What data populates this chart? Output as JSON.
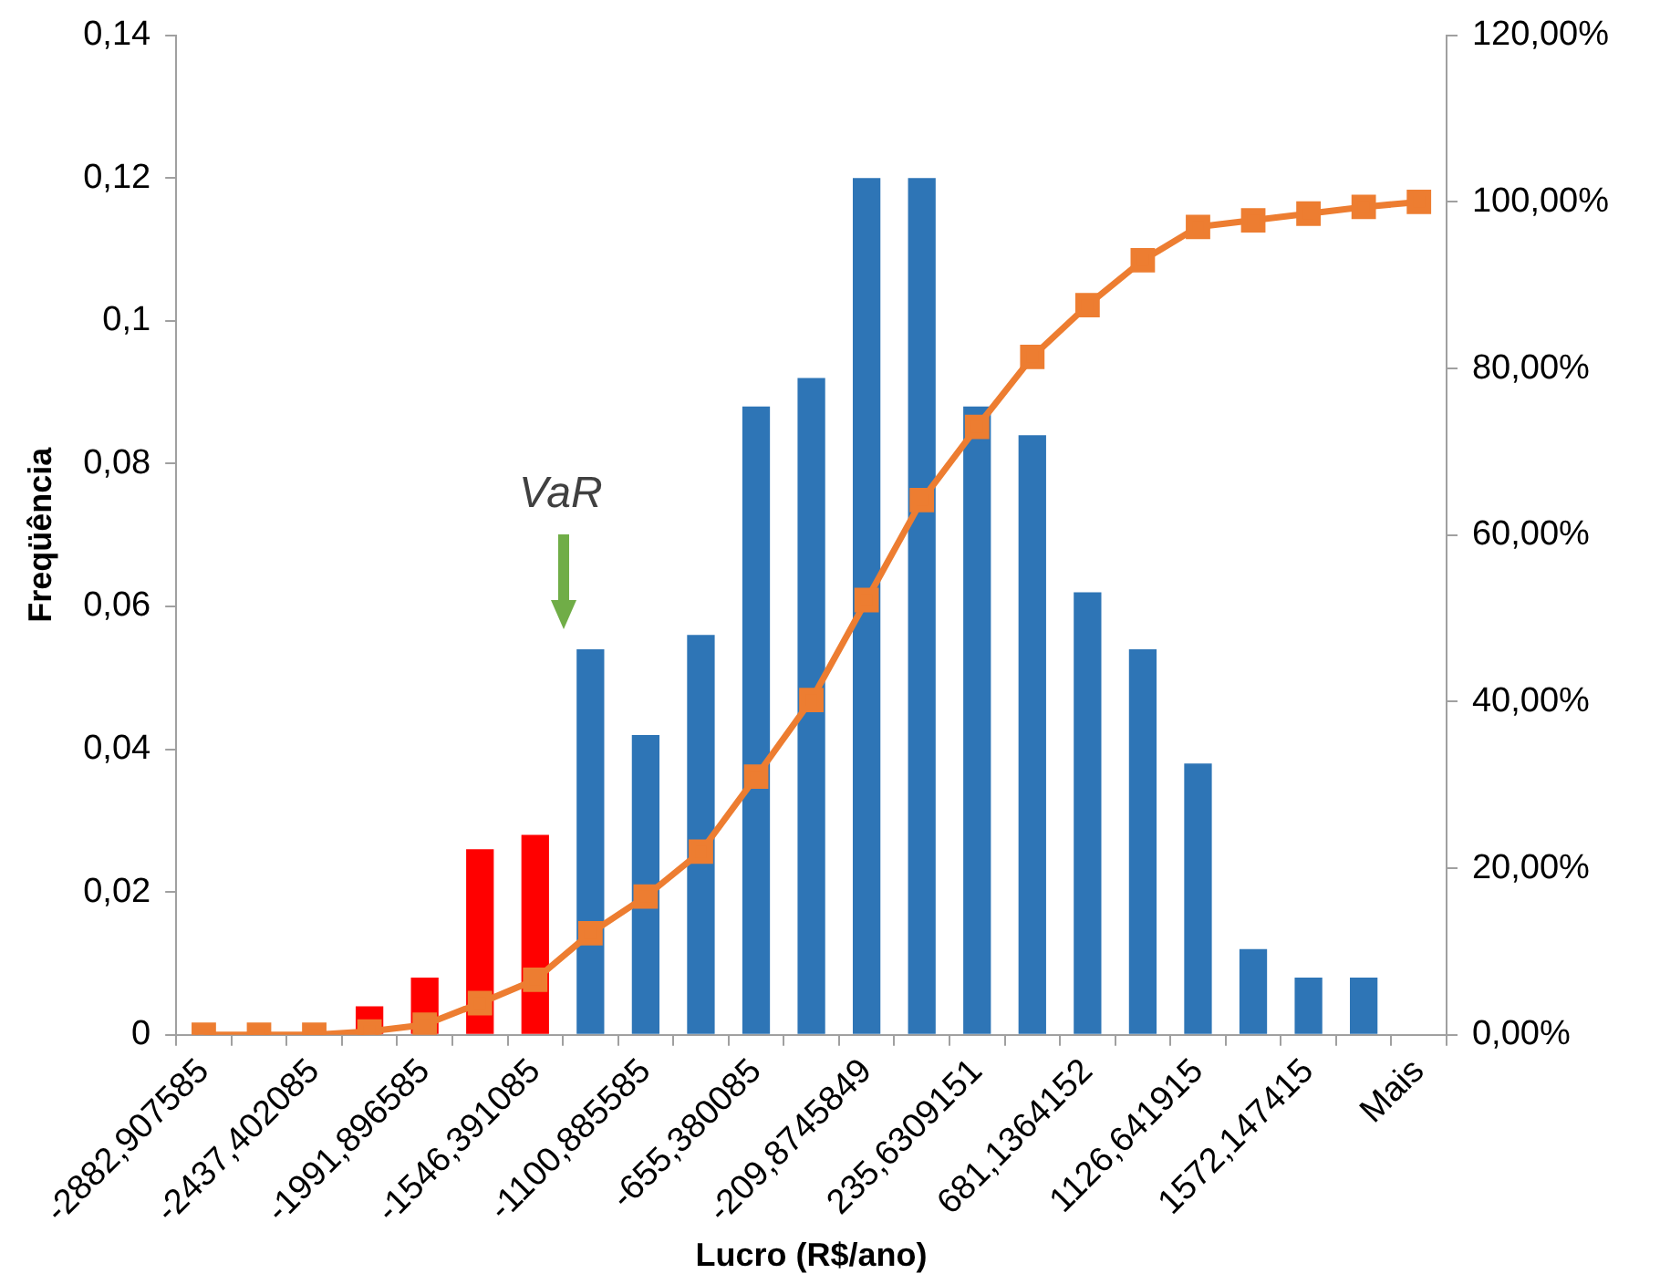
{
  "chart_data": {
    "type": "bar",
    "xlabel": "Lucro (R$/ano)",
    "ylabel": "Freqüência",
    "categories": [
      "-2882,907585",
      null,
      "-2437,402085",
      null,
      "-1991,896585",
      null,
      "-1546,391085",
      null,
      "-1100,885585",
      null,
      "-655,380085",
      null,
      "-209,8745849",
      null,
      "235,6309151",
      null,
      "681,1364152",
      null,
      "1126,641915",
      null,
      "1572,147415",
      null,
      "Mais"
    ],
    "series": [
      {
        "values": [
          0,
          0,
          0,
          0.004,
          0.008,
          0.026,
          0.028,
          0.054,
          0.042,
          0.056,
          0.088,
          0.092,
          0.12,
          0.12,
          0.088,
          0.084,
          0.062,
          0.054,
          0.038,
          0.012,
          0.008,
          0.008,
          0
        ],
        "colors": [
          "#2e75b6",
          "#2e75b6",
          "#2e75b6",
          "#ff0000",
          "#ff0000",
          "#ff0000",
          "#ff0000",
          "#2e75b6",
          "#2e75b6",
          "#2e75b6",
          "#2e75b6",
          "#2e75b6",
          "#2e75b6",
          "#2e75b6",
          "#2e75b6",
          "#2e75b6",
          "#2e75b6",
          "#2e75b6",
          "#2e75b6",
          "#2e75b6",
          "#2e75b6",
          "#2e75b6",
          "#2e75b6"
        ]
      },
      {
        "type": "line",
        "axis": "y2",
        "color": "#ed7d31",
        "values": [
          0,
          0,
          0,
          0.4,
          1.2,
          3.8,
          6.6,
          12.2,
          16.6,
          22,
          31,
          40.2,
          52.2,
          64.2,
          73,
          81.4,
          87.6,
          93,
          97,
          97.8,
          98.6,
          99.4,
          100
        ]
      }
    ],
    "ylim": [
      0,
      0.14
    ],
    "yticks": [
      0,
      {
        "value": 0.02,
        "label": "0,02"
      },
      {
        "value": 0.04,
        "label": "0,04"
      },
      {
        "value": 0.06,
        "label": "0,06"
      },
      {
        "value": 0.08,
        "label": "0,08"
      },
      {
        "value": 0.1,
        "label": "0,1"
      },
      {
        "value": 0.12,
        "label": "0,12"
      },
      {
        "value": 0.14,
        "label": "0,14"
      }
    ],
    "y2lim": [
      0,
      120
    ],
    "y2ticks": [
      {
        "value": 0,
        "label": "0,00%"
      },
      {
        "value": 20,
        "label": "20,00%"
      },
      {
        "value": 40,
        "label": "40,00%"
      },
      {
        "value": 60,
        "label": "60,00%"
      },
      {
        "value": 80,
        "label": "80,00%"
      },
      {
        "value": 100,
        "label": "100,00%"
      },
      {
        "value": 120,
        "label": "120,00%"
      }
    ],
    "marker": "square",
    "grid": false,
    "legend": false,
    "annotations": [
      "VaR"
    ]
  }
}
